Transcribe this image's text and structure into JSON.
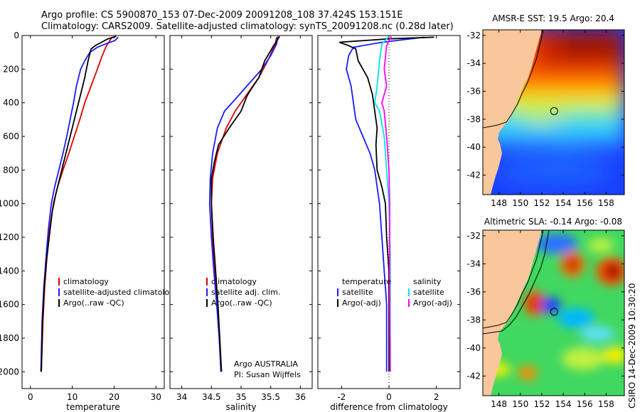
{
  "header": {
    "line1": "Argo profile: CS 5900870_153 07-Dec-2009 20091208_108 37.424S 153.151E",
    "line2": "Climatology: CARS2009. Satellite-adjusted climatology: synTS_20091208.nc (0.28d later)"
  },
  "side_label": "CSIRO 14-Dec-2009 10:30:20",
  "colors": {
    "climatology": "#e00000",
    "satellite": "#1a1aff",
    "argo": "#000000",
    "satellite_sal": "#00e5e5",
    "argo_sal_diff": "#ff00ff",
    "land": "#f9c79b"
  },
  "chart_data": [
    {
      "type": "line",
      "id": "temperature",
      "xlabel": "temperature",
      "ylabel": "",
      "xlim": [
        -2,
        32
      ],
      "ylim": [
        2100,
        0
      ],
      "xticks": [
        0,
        10,
        20,
        30
      ],
      "yticks": [
        0,
        200,
        400,
        600,
        800,
        1000,
        1200,
        1400,
        1600,
        1800,
        2000
      ],
      "legend": [
        "climatology",
        "satellite-adjusted climatology",
        "Argo(..raw -QC)"
      ],
      "series": [
        {
          "name": "climatology",
          "color": "climatology",
          "points": [
            [
              19.5,
              10
            ],
            [
              19,
              30
            ],
            [
              18,
              70
            ],
            [
              17,
              130
            ],
            [
              16,
              200
            ],
            [
              14.5,
              300
            ],
            [
              13,
              400
            ],
            [
              11.8,
              500
            ],
            [
              10.5,
              600
            ],
            [
              9.2,
              700
            ],
            [
              7.8,
              800
            ],
            [
              6.5,
              900
            ],
            [
              5.5,
              1000
            ],
            [
              4.6,
              1150
            ],
            [
              4,
              1300
            ],
            [
              3.4,
              1500
            ],
            [
              3,
              1700
            ],
            [
              2.6,
              2000
            ]
          ]
        },
        {
          "name": "satellite-adjusted climatology",
          "color": "satellite",
          "points": [
            [
              21,
              10
            ],
            [
              20.2,
              30
            ],
            [
              18,
              50
            ],
            [
              16,
              70
            ],
            [
              14.2,
              100
            ],
            [
              13,
              150
            ],
            [
              12,
              200
            ],
            [
              11,
              300
            ],
            [
              10.3,
              400
            ],
            [
              9.5,
              500
            ],
            [
              8.7,
              600
            ],
            [
              7.8,
              700
            ],
            [
              6.8,
              800
            ],
            [
              5.8,
              900
            ],
            [
              5,
              1000
            ],
            [
              4.3,
              1150
            ],
            [
              3.8,
              1300
            ],
            [
              3.2,
              1500
            ],
            [
              2.8,
              1700
            ],
            [
              2.5,
              2000
            ]
          ]
        },
        {
          "name": "Argo(..raw -QC)",
          "color": "argo",
          "points": [
            [
              20.5,
              5
            ],
            [
              18.5,
              20
            ],
            [
              17,
              40
            ],
            [
              15.5,
              60
            ],
            [
              14.5,
              80
            ],
            [
              13.8,
              150
            ],
            [
              13,
              250
            ],
            [
              12,
              350
            ],
            [
              11,
              450
            ],
            [
              10,
              550
            ],
            [
              9,
              650
            ],
            [
              8,
              750
            ],
            [
              7,
              850
            ],
            [
              6,
              950
            ],
            [
              5.2,
              1050
            ],
            [
              4.5,
              1200
            ],
            [
              3.8,
              1350
            ],
            [
              3.3,
              1500
            ],
            [
              2.9,
              1700
            ],
            [
              2.6,
              2000
            ]
          ]
        }
      ]
    },
    {
      "type": "line",
      "id": "salinity",
      "xlabel": "salinity",
      "ylabel": "",
      "xlim": [
        33.8,
        36.2
      ],
      "ylim": [
        2100,
        0
      ],
      "xticks": [
        34,
        34.5,
        35,
        35.5,
        36
      ],
      "yticks": [],
      "legend": [
        "climatology",
        "satellite adj. clim.",
        "Argo(..raw -QC)"
      ],
      "annotation": [
        "Argo AUSTRALIA",
        "PI: Susan Wijffels"
      ],
      "series": [
        {
          "name": "climatology",
          "color": "climatology",
          "points": [
            [
              35.6,
              10
            ],
            [
              35.58,
              50
            ],
            [
              35.45,
              150
            ],
            [
              35.3,
              250
            ],
            [
              35.1,
              350
            ],
            [
              34.9,
              450
            ],
            [
              34.75,
              550
            ],
            [
              34.6,
              700
            ],
            [
              34.52,
              850
            ],
            [
              34.5,
              1000
            ],
            [
              34.52,
              1200
            ],
            [
              34.55,
              1400
            ],
            [
              34.6,
              1600
            ],
            [
              34.64,
              1800
            ],
            [
              34.66,
              2000
            ]
          ]
        },
        {
          "name": "satellite adj. clim.",
          "color": "satellite",
          "points": [
            [
              35.62,
              5
            ],
            [
              35.6,
              50
            ],
            [
              35.5,
              120
            ],
            [
              35.35,
              200
            ],
            [
              35.1,
              300
            ],
            [
              34.9,
              380
            ],
            [
              34.72,
              450
            ],
            [
              34.6,
              550
            ],
            [
              34.52,
              700
            ],
            [
              34.48,
              850
            ],
            [
              34.47,
              1000
            ],
            [
              34.5,
              1200
            ],
            [
              34.54,
              1400
            ],
            [
              34.59,
              1600
            ],
            [
              34.63,
              1800
            ],
            [
              34.66,
              2000
            ]
          ]
        },
        {
          "name": "Argo(..raw -QC)",
          "color": "argo",
          "points": [
            [
              35.65,
              5
            ],
            [
              35.55,
              60
            ],
            [
              35.4,
              150
            ],
            [
              35.3,
              250
            ],
            [
              35.15,
              330
            ],
            [
              35.1,
              360
            ],
            [
              35,
              450
            ],
            [
              34.8,
              550
            ],
            [
              34.62,
              650
            ],
            [
              34.55,
              750
            ],
            [
              34.5,
              850
            ],
            [
              34.5,
              1000
            ],
            [
              34.53,
              1200
            ],
            [
              34.57,
              1400
            ],
            [
              34.61,
              1600
            ],
            [
              34.64,
              1800
            ],
            [
              34.67,
              2000
            ]
          ]
        }
      ]
    },
    {
      "type": "line",
      "id": "difference",
      "xlabel": "difference from climatology",
      "ylabel": "",
      "xlim": [
        -3,
        3
      ],
      "ylim": [
        2100,
        0
      ],
      "xticks": [
        -2,
        0,
        2
      ],
      "yticks": [],
      "legend_left": {
        "title": "temperature",
        "items": [
          "satellite",
          "Argo(-adj)"
        ]
      },
      "legend_right": {
        "title": "salinity",
        "items": [
          "satellite",
          "Argo(-adj)"
        ]
      },
      "series": [
        {
          "name": "temperature satellite",
          "color": "satellite",
          "points": [
            [
              1.5,
              10
            ],
            [
              -0.3,
              40
            ],
            [
              -1.5,
              70
            ],
            [
              -1.7,
              120
            ],
            [
              -1.8,
              200
            ],
            [
              -1.6,
              300
            ],
            [
              -1.5,
              400
            ],
            [
              -1.4,
              500
            ],
            [
              -1.1,
              600
            ],
            [
              -0.8,
              700
            ],
            [
              -0.6,
              800
            ],
            [
              -0.5,
              900
            ],
            [
              -0.4,
              1000
            ],
            [
              -0.3,
              1200
            ],
            [
              -0.2,
              1400
            ],
            [
              -0.1,
              1600
            ],
            [
              -0.1,
              1800
            ],
            [
              -0.1,
              2000
            ]
          ]
        },
        {
          "name": "temperature Argo(-adj)",
          "color": "argo",
          "points": [
            [
              1.9,
              10
            ],
            [
              0,
              20
            ],
            [
              -2.1,
              40
            ],
            [
              -1.7,
              60
            ],
            [
              -1.4,
              80
            ],
            [
              -1.3,
              150
            ],
            [
              -1.1,
              200
            ],
            [
              -0.9,
              250
            ],
            [
              -0.7,
              350
            ],
            [
              -0.6,
              450
            ],
            [
              -0.5,
              550
            ],
            [
              -0.55,
              650
            ],
            [
              -0.5,
              800
            ],
            [
              -0.3,
              900
            ],
            [
              -0.15,
              1000
            ],
            [
              -0.1,
              1200
            ],
            [
              0,
              1400
            ],
            [
              0,
              1600
            ],
            [
              0,
              1800
            ],
            [
              0,
              2000
            ]
          ]
        },
        {
          "name": "salinity satellite",
          "color": "satellite_sal",
          "points": [
            [
              0,
              5
            ],
            [
              -0.3,
              50
            ],
            [
              -0.4,
              150
            ],
            [
              -0.5,
              300
            ],
            [
              -0.6,
              400
            ],
            [
              -0.4,
              450
            ],
            [
              -0.2,
              600
            ],
            [
              -0.1,
              800
            ],
            [
              0,
              1000
            ],
            [
              0.05,
              1300
            ],
            [
              0.05,
              1600
            ],
            [
              0.06,
              2000
            ]
          ]
        },
        {
          "name": "salinity Argo(-adj)",
          "color": "argo_sal_diff",
          "points": [
            [
              0.1,
              5
            ],
            [
              -0.1,
              60
            ],
            [
              -0.2,
              200
            ],
            [
              -0.1,
              300
            ],
            [
              -0.3,
              400
            ],
            [
              -0.2,
              450
            ],
            [
              -0.1,
              600
            ],
            [
              0,
              800
            ],
            [
              0.03,
              1000
            ],
            [
              0.03,
              1500
            ],
            [
              0.05,
              2000
            ]
          ]
        }
      ]
    },
    {
      "type": "heatmap",
      "id": "sst",
      "title": "AMSR-E SST: 19.5  Argo: 20.4",
      "xlim": [
        146.5,
        159.7
      ],
      "ylim": [
        -43.4,
        -31.6
      ],
      "xticks": [
        148,
        150,
        152,
        154,
        156,
        158
      ],
      "yticks": [
        -32,
        -34,
        -36,
        -38,
        -40,
        -42
      ],
      "float_position": [
        153.15,
        -37.42
      ]
    },
    {
      "type": "heatmap",
      "id": "sla",
      "title": "Altimetric SLA: -0.14  Argo: -0.08",
      "xlim": [
        146.5,
        159.7
      ],
      "ylim": [
        -43.4,
        -31.6
      ],
      "xticks": [
        148,
        150,
        152,
        154,
        156,
        158
      ],
      "yticks": [
        -32,
        -34,
        -36,
        -38,
        -40,
        -42
      ],
      "float_position": [
        153.15,
        -37.42
      ]
    }
  ]
}
